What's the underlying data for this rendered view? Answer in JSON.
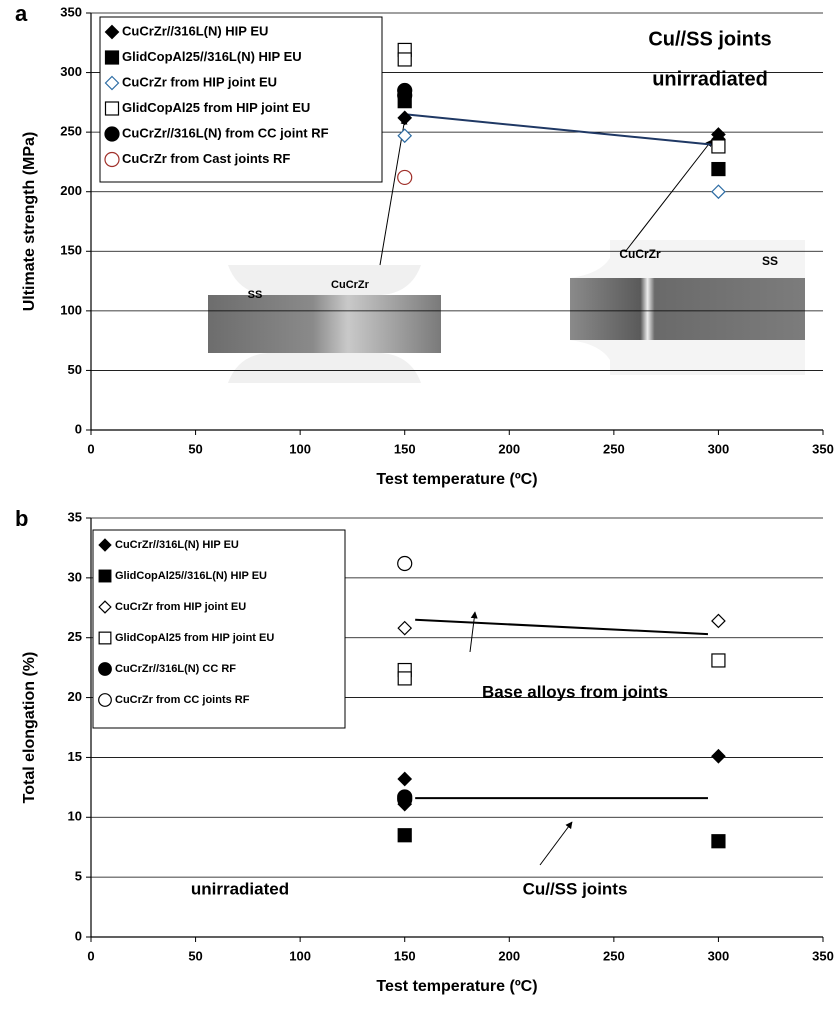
{
  "chart_data": [
    {
      "type": "scatter",
      "y_label": "Ultimate strength (MPa)",
      "x_label": "Test temperature (ºC)",
      "xlim": [
        0,
        350
      ],
      "xticks": [
        0,
        50,
        100,
        150,
        200,
        250,
        300,
        350
      ],
      "ylim": [
        0,
        350
      ],
      "yticks": [
        0,
        50,
        100,
        150,
        200,
        250,
        300,
        350
      ],
      "grid": true,
      "series": [
        {
          "name": "CuCrZr//316L(N) HIP EU",
          "marker": "diamond",
          "filled": true,
          "color": "#000000",
          "x": [
            150,
            300,
            300
          ],
          "values": [
            262,
            248,
            244
          ]
        },
        {
          "name": "GlidCopAl25//316L(N) HIP EU",
          "marker": "square",
          "filled": true,
          "color": "#000000",
          "x": [
            150,
            300
          ],
          "values": [
            276,
            219
          ]
        },
        {
          "name": "CuCrZr from HIP joint  EU",
          "marker": "diamond",
          "filled": false,
          "color": "#2e6da4",
          "x": [
            150,
            300
          ],
          "values": [
            247,
            200
          ]
        },
        {
          "name": "GlidCopAl25 from HIP joint EU",
          "marker": "square",
          "filled": false,
          "color": "#000000",
          "x": [
            150,
            150,
            300
          ],
          "values": [
            319,
            311,
            238
          ]
        },
        {
          "name": "CuCrZr//316L(N) from CC joint RF",
          "marker": "circle",
          "filled": true,
          "color": "#000000",
          "x": [
            150,
            150
          ],
          "values": [
            285,
            281
          ]
        },
        {
          "name": "CuCrZr from Cast joints  RF",
          "marker": "circle",
          "filled": false,
          "color": "#a0302a",
          "x": [
            150
          ],
          "values": [
            212
          ]
        }
      ],
      "trend_lines": [
        {
          "color": "#1f3864",
          "x": [
            150,
            300
          ],
          "values": [
            265,
            239
          ]
        }
      ],
      "annotations": [
        "a",
        "Cu//SS joints",
        "unirradiated",
        "SS",
        "CuCrZr",
        "CuCrZr",
        "SS"
      ]
    },
    {
      "type": "scatter",
      "y_label": "Total elongation (%)",
      "x_label": "Test temperature (ºC)",
      "xlim": [
        0,
        350
      ],
      "xticks": [
        0,
        50,
        100,
        150,
        200,
        250,
        300,
        350
      ],
      "ylim": [
        0,
        35
      ],
      "yticks": [
        0,
        5,
        10,
        15,
        20,
        25,
        30,
        35
      ],
      "grid": true,
      "series": [
        {
          "name": "CuCrZr//316L(N) HIP EU",
          "marker": "diamond",
          "filled": true,
          "color": "#000000",
          "x": [
            150,
            150,
            300
          ],
          "values": [
            13.2,
            11.1,
            15.1
          ]
        },
        {
          "name": "GlidCopAl25//316L(N) HIP EU",
          "marker": "square",
          "filled": true,
          "color": "#000000",
          "x": [
            150,
            300
          ],
          "values": [
            8.5,
            8.0
          ]
        },
        {
          "name": "CuCrZr from HIP joint EU",
          "marker": "diamond",
          "filled": false,
          "color": "#000000",
          "x": [
            150,
            300
          ],
          "values": [
            25.8,
            26.4
          ]
        },
        {
          "name": "GlidCopAl25 from HIP joint EU",
          "marker": "square",
          "filled": false,
          "color": "#000000",
          "x": [
            150,
            150,
            300
          ],
          "values": [
            22.3,
            21.6,
            23.1
          ]
        },
        {
          "name": "CuCrZr//316L(N)  CC RF",
          "marker": "circle",
          "filled": true,
          "color": "#000000",
          "x": [
            150,
            150
          ],
          "values": [
            11.7,
            11.5
          ]
        },
        {
          "name": "CuCrZr from CC joints  RF",
          "marker": "circle",
          "filled": false,
          "color": "#000000",
          "x": [
            150
          ],
          "values": [
            31.2
          ]
        }
      ],
      "trend_lines": [
        {
          "color": "#000000",
          "x": [
            155,
            295
          ],
          "values": [
            26.5,
            25.3
          ]
        },
        {
          "color": "#000000",
          "x": [
            155,
            295
          ],
          "values": [
            11.6,
            11.6
          ]
        }
      ],
      "annotations": [
        "b",
        "Base alloys from joints",
        "unirradiated",
        "Cu//SS joints"
      ]
    }
  ]
}
